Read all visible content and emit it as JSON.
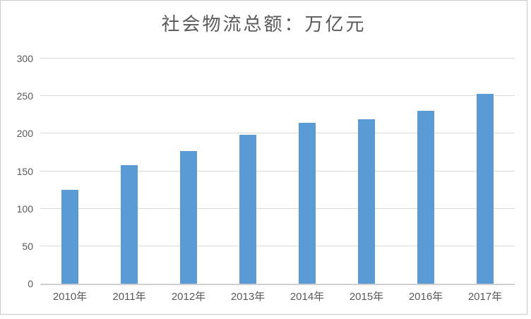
{
  "frame": {
    "background": "#ffffff",
    "border_color": "#c9c9c9"
  },
  "chart_data": {
    "type": "bar",
    "title": "社会物流总额：万亿元",
    "categories": [
      "2010年",
      "2011年",
      "2012年",
      "2013年",
      "2014年",
      "2015年",
      "2016年",
      "2017年"
    ],
    "values": [
      125,
      158,
      177,
      198,
      214,
      219,
      230,
      253
    ],
    "xlabel": "",
    "ylabel": "",
    "ylim": [
      0,
      300
    ],
    "yticks": [
      0,
      50,
      100,
      150,
      200,
      250,
      300
    ],
    "grid": true,
    "legend": false,
    "bar_color": "#5b9bd5",
    "gridline_color": "#d9d9d9",
    "axis_line_color": "#cfcfcf",
    "tick_label_color": "#595959",
    "title_color": "#595959"
  }
}
